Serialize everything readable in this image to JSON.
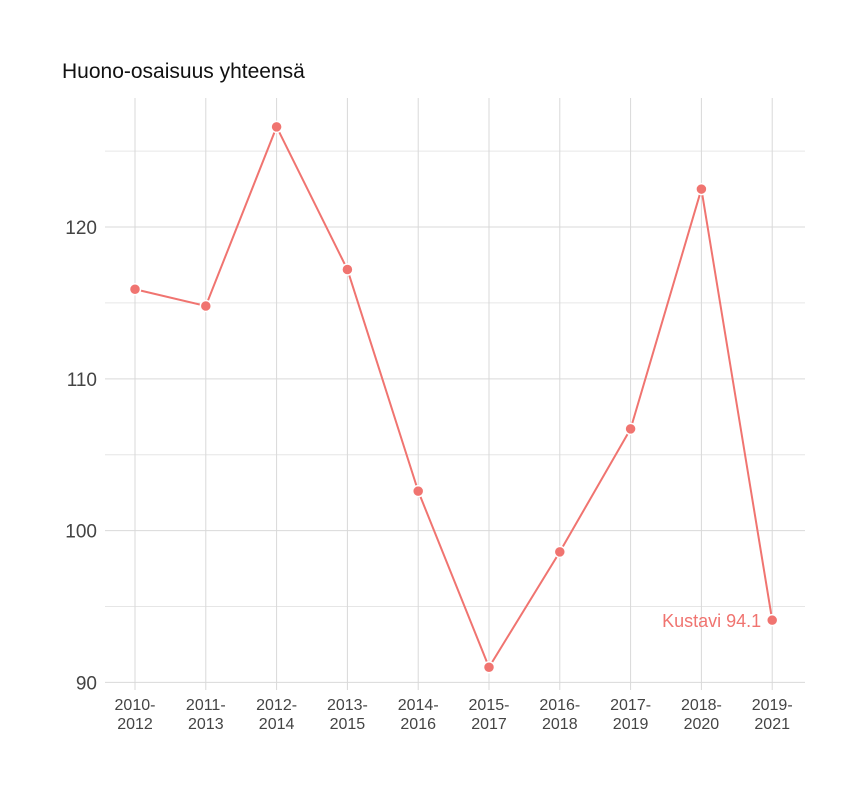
{
  "chart_data": {
    "type": "line",
    "title": "Huono-osaisuus yhteensä",
    "xlabel": "",
    "ylabel": "",
    "categories": [
      [
        "2010-",
        "2012"
      ],
      [
        "2011-",
        "2013"
      ],
      [
        "2012-",
        "2014"
      ],
      [
        "2013-",
        "2015"
      ],
      [
        "2014-",
        "2016"
      ],
      [
        "2015-",
        "2017"
      ],
      [
        "2016-",
        "2018"
      ],
      [
        "2017-",
        "2019"
      ],
      [
        "2018-",
        "2020"
      ],
      [
        "2019-",
        "2021"
      ]
    ],
    "series": [
      {
        "name": "Kustavi",
        "color": "#f07470",
        "values": [
          115.9,
          114.8,
          126.6,
          117.2,
          102.6,
          91.0,
          98.6,
          106.7,
          122.5,
          94.1
        ]
      }
    ],
    "end_label": "Kustavi 94.1",
    "ylim": [
      89.5,
      128.5
    ],
    "yticks": [
      90,
      100,
      110,
      120
    ],
    "grid": true
  }
}
